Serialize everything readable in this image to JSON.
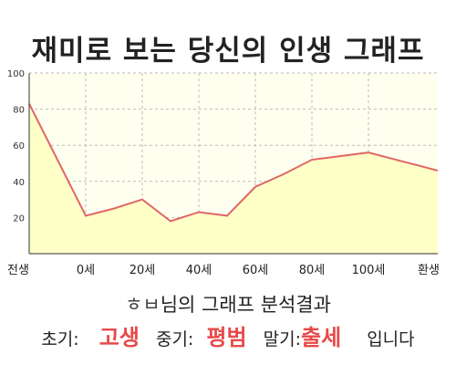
{
  "title": "재미로 보는 당신의 인생 그래프",
  "chart_data": {
    "type": "area",
    "x_tick_labels": [
      "전생",
      "0세",
      "20세",
      "40세",
      "60세",
      "80세",
      "100세",
      "환생"
    ],
    "y_ticks": [
      20,
      40,
      60,
      80,
      100
    ],
    "ylim": [
      0,
      100
    ],
    "grid": true,
    "series": [
      {
        "x": [
          "전생",
          "0세",
          "10세",
          "20세",
          "30세",
          "40세",
          "50세",
          "60세",
          "70세",
          "80세",
          "90세",
          "100세",
          "환생"
        ],
        "values": [
          83,
          21,
          25,
          30,
          18,
          23,
          21,
          37,
          44,
          52,
          54,
          56,
          46
        ]
      }
    ],
    "colors": {
      "line": "#e06666",
      "fill": "#ffffc8",
      "plot_bg": "#fffff0",
      "axis": "#333333"
    }
  },
  "analysis": {
    "name": "ㅎㅂ",
    "suffix": "님의 그래프 분석결과",
    "early_label": "초기:",
    "early_value": "고생",
    "middle_label": "중기:",
    "middle_value": "평범",
    "late_label": "말기:",
    "late_value": "출세",
    "ending": "입니다"
  }
}
